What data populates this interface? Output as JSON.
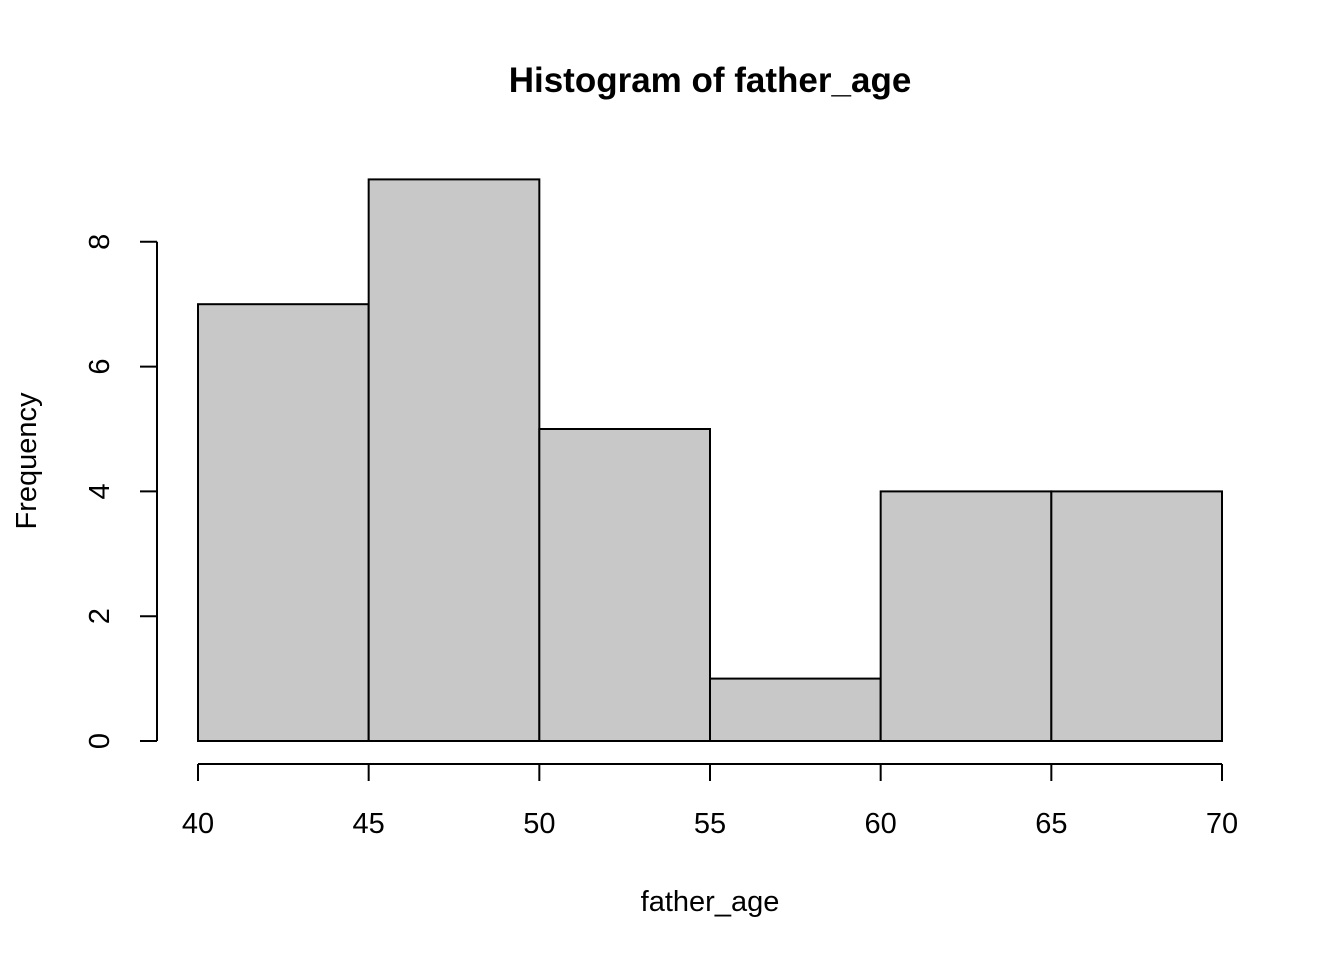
{
  "chart_data": {
    "type": "bar",
    "title": "Histogram of father_age",
    "xlabel": "father_age",
    "ylabel": "Frequency",
    "bins": [
      {
        "start": 40,
        "end": 45,
        "count": 7
      },
      {
        "start": 45,
        "end": 50,
        "count": 9
      },
      {
        "start": 50,
        "end": 55,
        "count": 5
      },
      {
        "start": 55,
        "end": 60,
        "count": 1
      },
      {
        "start": 60,
        "end": 65,
        "count": 4
      },
      {
        "start": 65,
        "end": 70,
        "count": 4
      }
    ],
    "xticks": [
      40,
      45,
      50,
      55,
      60,
      65,
      70
    ],
    "yticks": [
      0,
      2,
      4,
      6,
      8
    ],
    "xlim": [
      40,
      70
    ],
    "ylim": [
      0,
      9
    ],
    "bar_color": "#c8c8c8",
    "grid": false,
    "legend": "none"
  }
}
